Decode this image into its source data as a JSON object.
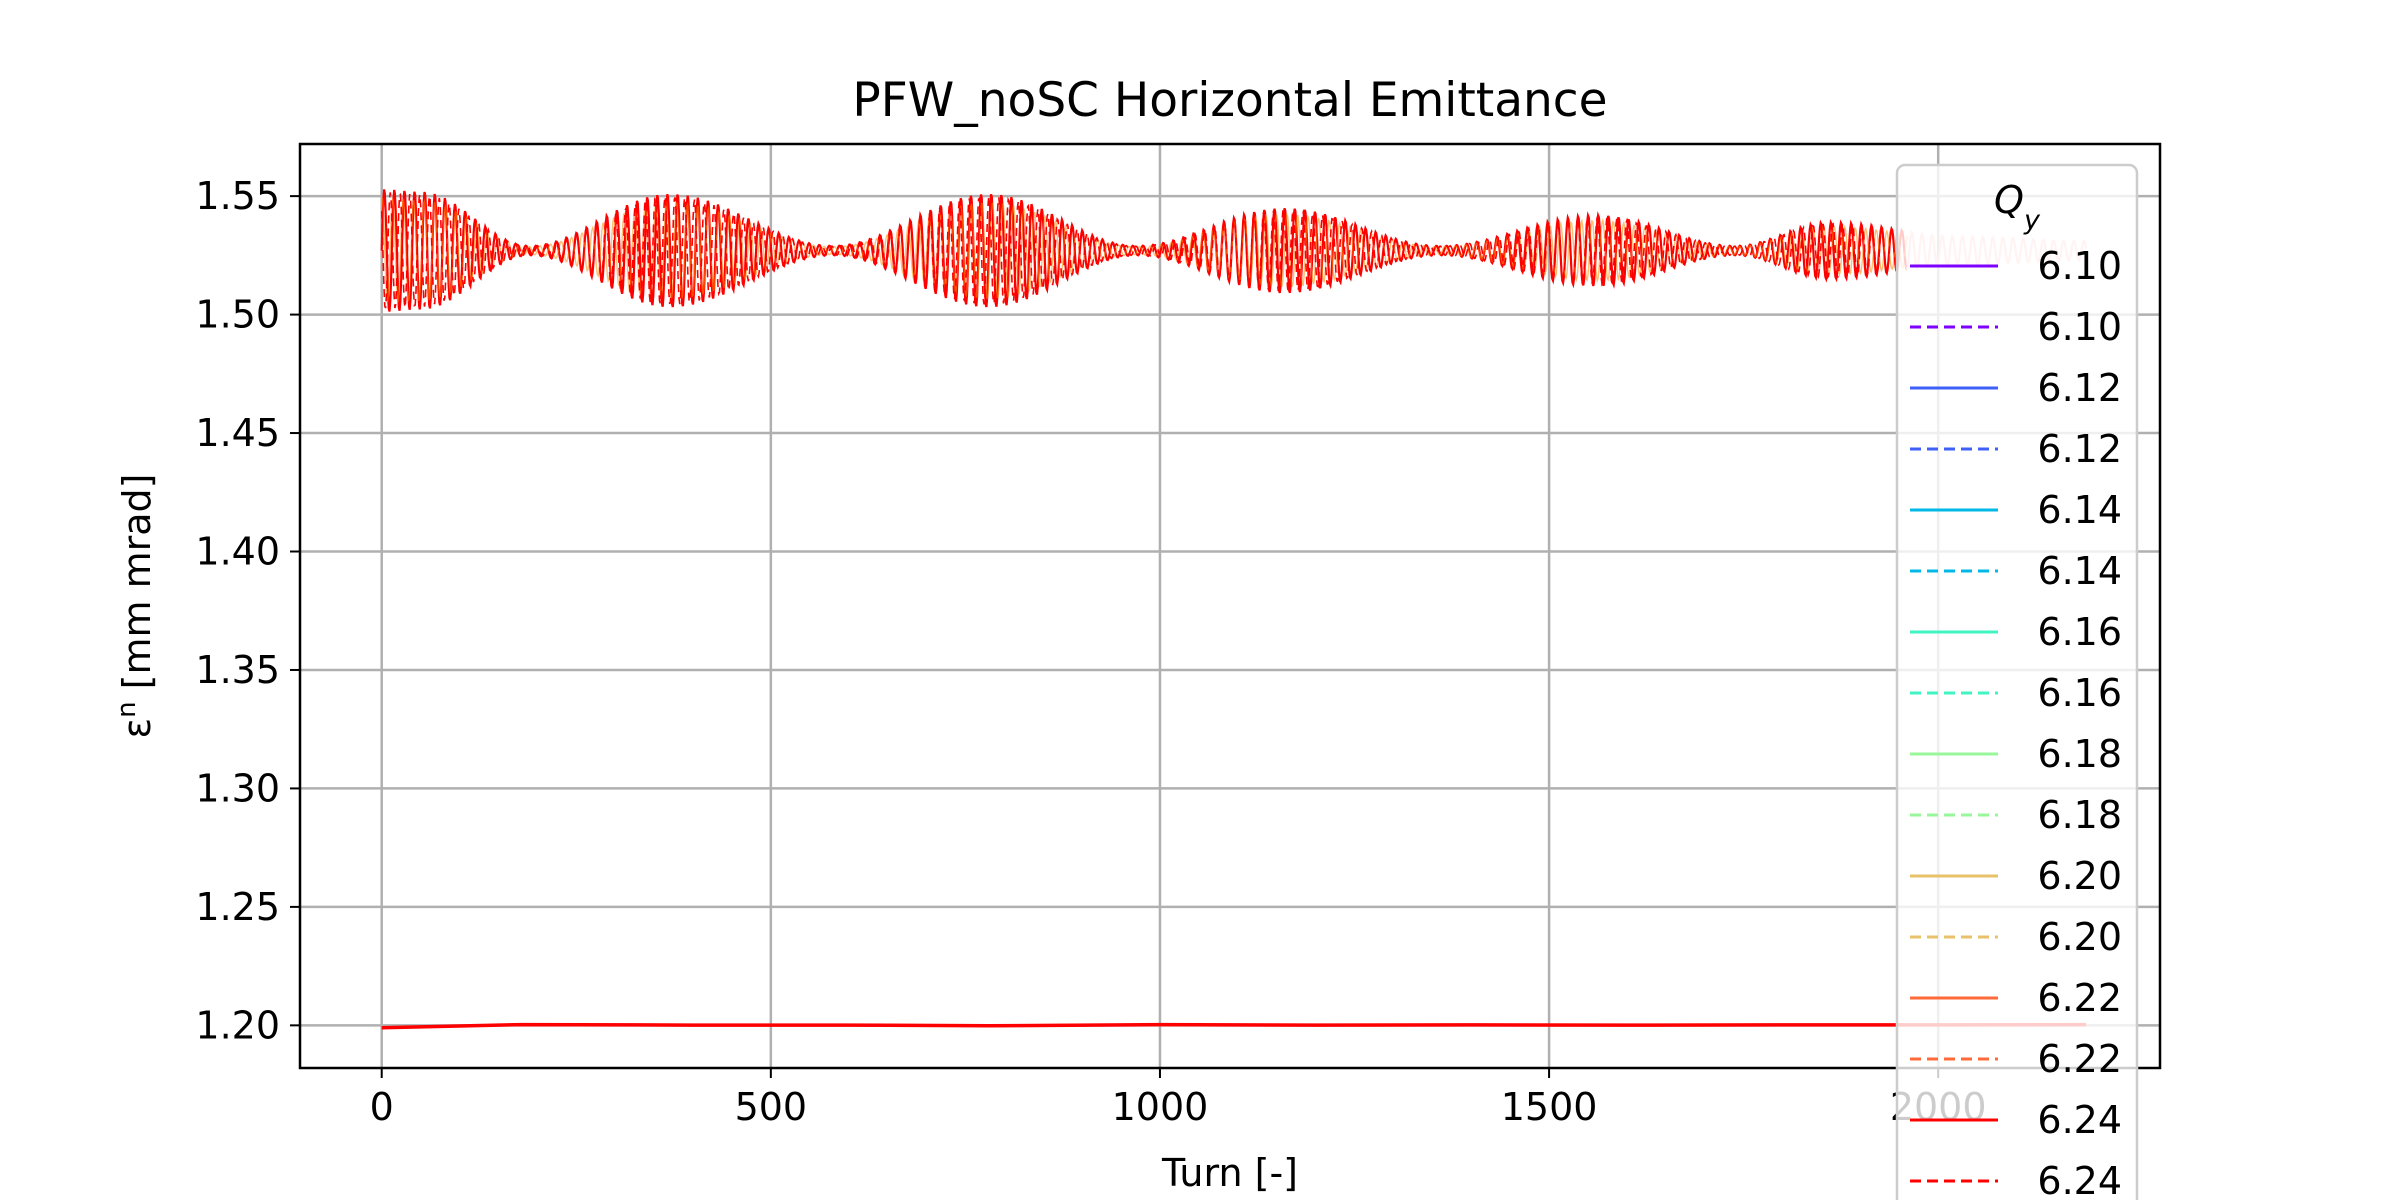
{
  "chart_data": {
    "type": "line",
    "title": "PFW_noSC Horizontal Emittance",
    "xlabel": "Turn [-]",
    "ylabel_symbol": "ε",
    "ylabel_superscript": "n",
    "ylabel_units": " [mm mrad]",
    "xlim": [
      -105,
      2285
    ],
    "ylim": [
      1.182,
      1.572
    ],
    "xticks": [
      0,
      500,
      1000,
      1500,
      2000
    ],
    "xtick_labels": [
      "0",
      "500",
      "1000",
      "1500",
      "2000"
    ],
    "yticks": [
      1.2,
      1.25,
      1.3,
      1.35,
      1.4,
      1.45,
      1.5,
      1.55
    ],
    "ytick_labels": [
      "1.20",
      "1.25",
      "1.30",
      "1.35",
      "1.40",
      "1.45",
      "1.50",
      "1.55"
    ],
    "grid": true,
    "legend": {
      "title_symbol": "Q",
      "title_subscript": "y",
      "placement": "right, overflowing plot edge"
    },
    "band": {
      "description": "oscillating emittance, beat envelope",
      "x_start": 0,
      "x_end": 2190,
      "center": 1.527,
      "oscillation_period_turns": 13,
      "envelope_amplitude": [
        {
          "x": 0,
          "a": 0.026
        },
        {
          "x": 50,
          "a": 0.025
        },
        {
          "x": 190,
          "a": 0.002
        },
        {
          "x": 370,
          "a": 0.024
        },
        {
          "x": 580,
          "a": 0.002
        },
        {
          "x": 780,
          "a": 0.024
        },
        {
          "x": 970,
          "a": 0.002
        },
        {
          "x": 1160,
          "a": 0.018
        },
        {
          "x": 1360,
          "a": 0.002
        },
        {
          "x": 1560,
          "a": 0.015
        },
        {
          "x": 1740,
          "a": 0.002
        },
        {
          "x": 1860,
          "a": 0.012
        },
        {
          "x": 2030,
          "a": 0.006
        },
        {
          "x": 2190,
          "a": 0.004
        }
      ]
    },
    "series": [
      {
        "name": "6.10",
        "style": "solid",
        "color": "#7f00ff"
      },
      {
        "name": "6.10",
        "style": "dashed",
        "color": "#7f00ff"
      },
      {
        "name": "6.12",
        "style": "solid",
        "color": "#3e60f7"
      },
      {
        "name": "6.12",
        "style": "dashed",
        "color": "#3e60f7"
      },
      {
        "name": "6.14",
        "style": "solid",
        "color": "#02b8e7"
      },
      {
        "name": "6.14",
        "style": "dashed",
        "color": "#02b8e7"
      },
      {
        "name": "6.16",
        "style": "solid",
        "color": "#40f5c4"
      },
      {
        "name": "6.16",
        "style": "dashed",
        "color": "#40f5c4"
      },
      {
        "name": "6.18",
        "style": "solid",
        "color": "#98f79a"
      },
      {
        "name": "6.18",
        "style": "dashed",
        "color": "#98f79a"
      },
      {
        "name": "6.20",
        "style": "solid",
        "color": "#e8c26a"
      },
      {
        "name": "6.20",
        "style": "dashed",
        "color": "#e8c26a"
      },
      {
        "name": "6.22",
        "style": "solid",
        "color": "#ff6a3a"
      },
      {
        "name": "6.22",
        "style": "dashed",
        "color": "#ff6a3a"
      },
      {
        "name": "6.24",
        "style": "solid",
        "color": "#ff0000"
      },
      {
        "name": "6.24",
        "style": "dashed",
        "color": "#ff0000"
      }
    ],
    "lower_series": {
      "color": "#ff0000",
      "points": [
        {
          "x": 0,
          "y": 1.199
        },
        {
          "x": 180,
          "y": 1.2003
        },
        {
          "x": 400,
          "y": 1.2001
        },
        {
          "x": 600,
          "y": 1.2001
        },
        {
          "x": 780,
          "y": 1.1998
        },
        {
          "x": 1000,
          "y": 1.2003
        },
        {
          "x": 1200,
          "y": 1.2001
        },
        {
          "x": 1400,
          "y": 1.2002
        },
        {
          "x": 1600,
          "y": 1.2001
        },
        {
          "x": 1800,
          "y": 1.2002
        },
        {
          "x": 2000,
          "y": 1.2002
        },
        {
          "x": 2190,
          "y": 1.2003
        }
      ]
    },
    "colors": {
      "band_main": "#ff0000",
      "band_overlay": "#ff8800",
      "band_tail": "#ffc8c0",
      "grid": "#b0b0b0"
    }
  }
}
